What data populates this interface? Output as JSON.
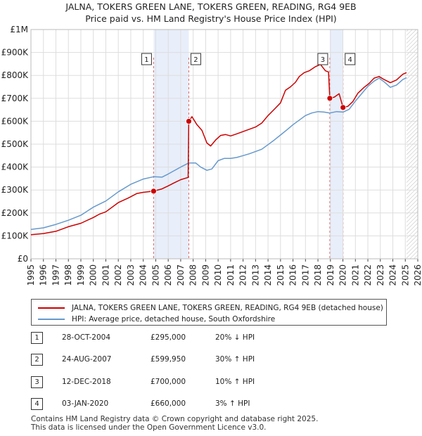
{
  "chart_data": {
    "type": "line",
    "title": "JALNA, TOKERS GREEN LANE, TOKERS GREEN, READING, RG4 9EB",
    "subtitle": "Price paid vs. HM Land Registry's House Price Index (HPI)",
    "xlabel": "",
    "ylabel": "",
    "xlim": [
      1995,
      2026
    ],
    "ylim": [
      0,
      1000000
    ],
    "x_ticks": [
      "1995",
      "1996",
      "1997",
      "1998",
      "1999",
      "2000",
      "2001",
      "2002",
      "2003",
      "2004",
      "2005",
      "2006",
      "2007",
      "2008",
      "2009",
      "2010",
      "2011",
      "2012",
      "2013",
      "2014",
      "2015",
      "2016",
      "2017",
      "2018",
      "2019",
      "2020",
      "2021",
      "2022",
      "2023",
      "2024",
      "2025",
      "2026"
    ],
    "y_ticks": [
      {
        "value": 0,
        "label": "£0"
      },
      {
        "value": 100000,
        "label": "£100K"
      },
      {
        "value": 200000,
        "label": "£200K"
      },
      {
        "value": 300000,
        "label": "£300K"
      },
      {
        "value": 400000,
        "label": "£400K"
      },
      {
        "value": 500000,
        "label": "£500K"
      },
      {
        "value": 600000,
        "label": "£600K"
      },
      {
        "value": 700000,
        "label": "£700K"
      },
      {
        "value": 800000,
        "label": "£800K"
      },
      {
        "value": 900000,
        "label": "£900K"
      },
      {
        "value": 1000000,
        "label": "£1M"
      }
    ],
    "grid": true,
    "shaded_periods": [
      {
        "from": 2004.83,
        "to": 2007.65
      },
      {
        "from": 2018.95,
        "to": 2020.01
      }
    ],
    "forecast_hatch_from": 2025.1,
    "series": [
      {
        "name": "JALNA, TOKERS GREEN LANE, TOKERS GREEN, READING, RG4 9EB (detached house)",
        "color": "#cc0000",
        "points": [
          [
            1995.0,
            105000
          ],
          [
            1996.0,
            110000
          ],
          [
            1997.0,
            120000
          ],
          [
            1998.0,
            140000
          ],
          [
            1999.0,
            155000
          ],
          [
            2000.0,
            180000
          ],
          [
            2000.5,
            195000
          ],
          [
            2001.0,
            205000
          ],
          [
            2002.0,
            245000
          ],
          [
            2002.8,
            265000
          ],
          [
            2003.5,
            285000
          ],
          [
            2004.0,
            290000
          ],
          [
            2004.83,
            295000
          ],
          [
            2005.5,
            305000
          ],
          [
            2006.0,
            318000
          ],
          [
            2006.5,
            332000
          ],
          [
            2007.0,
            345000
          ],
          [
            2007.6,
            355000
          ],
          [
            2007.65,
            599950
          ],
          [
            2007.9,
            620000
          ],
          [
            2008.3,
            585000
          ],
          [
            2008.7,
            560000
          ],
          [
            2009.1,
            505000
          ],
          [
            2009.4,
            492000
          ],
          [
            2009.8,
            518000
          ],
          [
            2010.2,
            538000
          ],
          [
            2010.6,
            542000
          ],
          [
            2011.0,
            536000
          ],
          [
            2011.5,
            545000
          ],
          [
            2012.0,
            555000
          ],
          [
            2012.5,
            565000
          ],
          [
            2013.0,
            575000
          ],
          [
            2013.5,
            592000
          ],
          [
            2014.0,
            625000
          ],
          [
            2014.5,
            652000
          ],
          [
            2015.0,
            680000
          ],
          [
            2015.4,
            735000
          ],
          [
            2015.8,
            750000
          ],
          [
            2016.2,
            770000
          ],
          [
            2016.5,
            795000
          ],
          [
            2016.9,
            812000
          ],
          [
            2017.3,
            820000
          ],
          [
            2017.8,
            838000
          ],
          [
            2018.2,
            848000
          ],
          [
            2018.6,
            820000
          ],
          [
            2018.85,
            815000
          ],
          [
            2018.95,
            700000
          ],
          [
            2019.3,
            705000
          ],
          [
            2019.7,
            720000
          ],
          [
            2020.01,
            660000
          ],
          [
            2020.4,
            665000
          ],
          [
            2020.8,
            686000
          ],
          [
            2021.2,
            722000
          ],
          [
            2021.7,
            748000
          ],
          [
            2022.1,
            765000
          ],
          [
            2022.5,
            788000
          ],
          [
            2022.9,
            795000
          ],
          [
            2023.3,
            782000
          ],
          [
            2023.8,
            768000
          ],
          [
            2024.3,
            780000
          ],
          [
            2024.8,
            805000
          ],
          [
            2025.1,
            812000
          ]
        ]
      },
      {
        "name": "HPI: Average price, detached house, South Oxfordshire",
        "color": "#6699cc",
        "points": [
          [
            1995.0,
            128000
          ],
          [
            1996.0,
            135000
          ],
          [
            1997.0,
            150000
          ],
          [
            1998.0,
            168000
          ],
          [
            1999.0,
            190000
          ],
          [
            2000.0,
            225000
          ],
          [
            2001.0,
            252000
          ],
          [
            2002.0,
            292000
          ],
          [
            2003.0,
            325000
          ],
          [
            2004.0,
            348000
          ],
          [
            2004.83,
            358000
          ],
          [
            2005.5,
            356000
          ],
          [
            2006.0,
            370000
          ],
          [
            2006.5,
            385000
          ],
          [
            2007.0,
            400000
          ],
          [
            2007.65,
            418000
          ],
          [
            2008.2,
            418000
          ],
          [
            2008.6,
            400000
          ],
          [
            2009.1,
            386000
          ],
          [
            2009.5,
            392000
          ],
          [
            2010.0,
            428000
          ],
          [
            2010.5,
            438000
          ],
          [
            2011.0,
            438000
          ],
          [
            2011.5,
            442000
          ],
          [
            2012.0,
            450000
          ],
          [
            2012.5,
            458000
          ],
          [
            2013.0,
            468000
          ],
          [
            2013.5,
            478000
          ],
          [
            2014.0,
            498000
          ],
          [
            2014.5,
            518000
          ],
          [
            2015.0,
            540000
          ],
          [
            2015.5,
            562000
          ],
          [
            2016.0,
            585000
          ],
          [
            2016.5,
            605000
          ],
          [
            2017.0,
            625000
          ],
          [
            2017.5,
            636000
          ],
          [
            2018.0,
            642000
          ],
          [
            2018.5,
            640000
          ],
          [
            2018.95,
            636000
          ],
          [
            2019.5,
            642000
          ],
          [
            2020.01,
            640000
          ],
          [
            2020.5,
            652000
          ],
          [
            2021.0,
            688000
          ],
          [
            2021.5,
            720000
          ],
          [
            2022.0,
            752000
          ],
          [
            2022.5,
            775000
          ],
          [
            2022.9,
            788000
          ],
          [
            2023.3,
            772000
          ],
          [
            2023.8,
            748000
          ],
          [
            2024.3,
            758000
          ],
          [
            2024.8,
            782000
          ],
          [
            2025.1,
            790000
          ]
        ]
      }
    ],
    "sales": [
      {
        "label": "1",
        "x": 2004.83,
        "price": 295000
      },
      {
        "label": "2",
        "x": 2007.65,
        "price": 599950
      },
      {
        "label": "3",
        "x": 2018.95,
        "price": 700000
      },
      {
        "label": "4",
        "x": 2020.01,
        "price": 660000
      }
    ]
  },
  "legend": {
    "property": "JALNA, TOKERS GREEN LANE, TOKERS GREEN, READING, RG4 9EB (detached house)",
    "hpi": "HPI: Average price, detached house, South Oxfordshire",
    "property_color": "#cc0000",
    "hpi_color": "#6699cc"
  },
  "transactions": [
    {
      "num": "1",
      "date": "28-OCT-2004",
      "price": "£295,000",
      "hpi": "20% ↓ HPI"
    },
    {
      "num": "2",
      "date": "24-AUG-2007",
      "price": "£599,950",
      "hpi": "30% ↑ HPI"
    },
    {
      "num": "3",
      "date": "12-DEC-2018",
      "price": "£700,000",
      "hpi": "10% ↑ HPI"
    },
    {
      "num": "4",
      "date": "03-JAN-2020",
      "price": "£660,000",
      "hpi": "3% ↑ HPI"
    }
  ],
  "footer": {
    "line1": "Contains HM Land Registry data © Crown copyright and database right 2025.",
    "line2": "This data is licensed under the Open Government Licence v3.0."
  }
}
